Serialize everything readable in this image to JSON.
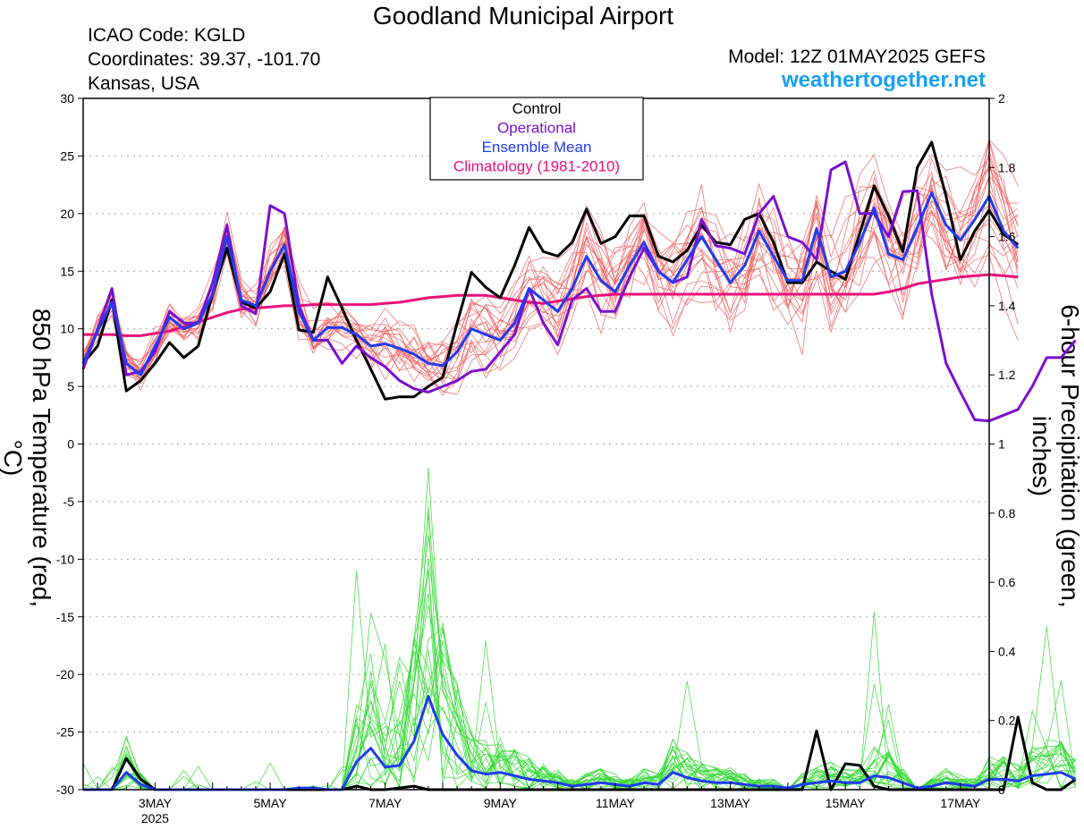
{
  "header": {
    "title": "Goodland Municipal Airport",
    "icao": "ICAO Code: KGLD",
    "coords": "Coordinates: 39.37, -101.70",
    "location": "Kansas, USA",
    "model": "Model: 12Z 01MAY2025 GEFS",
    "site": "weathertogether.net"
  },
  "colors": {
    "control": "#000000",
    "operational": "#7a10d0",
    "ensemble_mean": "#1f3cf0",
    "climatology": "#e8107a",
    "members_temp": "#f06060",
    "members_precip": "#30d830",
    "site": "#19a0f0"
  },
  "chart_data": {
    "type": "line",
    "ylabel_left": "850 hPa Temperature (red, °C)",
    "ylabel_right": "6-hour Precipitation (green, inches)",
    "ylim_left": [
      -30,
      30
    ],
    "ylim_right": [
      0,
      2
    ],
    "yticks_left": [
      "30",
      "25",
      "20",
      "15",
      "10",
      "5",
      "0",
      "-5",
      "-10",
      "-15",
      "-20",
      "-25",
      "-30"
    ],
    "yticks_right": [
      "2",
      "1.8",
      "1.6",
      "1.4",
      "1.2",
      "1",
      "0.8",
      "0.6",
      "0.4",
      "0.2",
      "0"
    ],
    "xticks": [
      {
        "label": "3MAY",
        "sub": "2025",
        "day": 3
      },
      {
        "label": "5MAY",
        "day": 5
      },
      {
        "label": "7MAY",
        "day": 7
      },
      {
        "label": "9MAY",
        "day": 9
      },
      {
        "label": "11MAY",
        "day": 11
      },
      {
        "label": "13MAY",
        "day": 13
      },
      {
        "label": "15MAY",
        "day": 15
      },
      {
        "label": "17MAY",
        "day": 17
      }
    ],
    "x_range_days": [
      1.75,
      17.5
    ],
    "grid": "dotted horizontal",
    "legend": {
      "position": "top-center",
      "entries": [
        {
          "name": "Control",
          "color": "#000000"
        },
        {
          "name": "Operational",
          "color": "#7a10d0"
        },
        {
          "name": "Ensemble Mean",
          "color": "#1f3cf0"
        },
        {
          "name": "Climatology (1981-2010)",
          "color": "#e8107a"
        }
      ]
    },
    "series": [
      {
        "name": "Control",
        "axis": "left",
        "step_days": 0.25,
        "start_day": 1.75,
        "values": [
          7,
          8.5,
          12.5,
          4.6,
          5.5,
          7,
          8.8,
          7.5,
          8.5,
          13,
          17,
          12.3,
          11.8,
          13.2,
          16.5,
          9.9,
          9.7,
          14.5,
          11.8,
          9,
          6.5,
          3.9,
          4.1,
          4.1,
          5,
          5.8,
          10.5,
          14.9,
          13.6,
          12.7,
          15.5,
          18.8,
          16.7,
          16.3,
          17.5,
          20.4,
          17.4,
          18,
          19.8,
          19.8,
          16.3,
          15.8,
          16.8,
          19,
          17.5,
          17.3,
          19.5,
          20,
          17.5,
          14,
          14,
          15.8,
          15,
          14.3,
          18.3,
          22.4,
          19.8,
          16.7,
          24,
          26.2,
          21.5,
          16,
          18.5,
          20.3,
          18.2,
          17.3
        ]
      },
      {
        "name": "Operational",
        "axis": "left",
        "step_days": 0.25,
        "start_day": 1.75,
        "values": [
          6.5,
          10,
          13.5,
          6,
          6.3,
          8,
          11.5,
          10.5,
          10.5,
          14,
          19,
          12,
          11.3,
          20.7,
          20,
          12,
          9,
          9,
          7,
          8.5,
          7.5,
          6.7,
          5.5,
          4.8,
          4.5,
          5,
          5.5,
          6.3,
          6.5,
          8,
          9.5,
          13.5,
          10.5,
          8.6,
          12.5,
          13.5,
          11.5,
          11.5,
          14.5,
          17,
          15,
          14,
          14.5,
          19.5,
          17.2,
          17,
          16.5,
          20,
          21.5,
          18,
          17.5,
          16,
          23.8,
          24.5,
          20,
          20,
          18,
          21.9,
          22,
          13,
          7,
          4.5,
          2.1,
          2,
          2.5,
          3,
          5,
          7.5,
          7.5,
          9
        ]
      },
      {
        "name": "Ensemble Mean",
        "axis": "left",
        "step_days": 0.25,
        "start_day": 1.75,
        "values": [
          7,
          9.8,
          12.3,
          7,
          6,
          8.5,
          11,
          10,
          10.5,
          13,
          18,
          12.5,
          12,
          15,
          17.3,
          11.5,
          9,
          10.1,
          10.1,
          9.5,
          8.5,
          8.7,
          8.3,
          7.8,
          7,
          6.8,
          8,
          10,
          9.5,
          9,
          10.5,
          13.5,
          12.5,
          11.5,
          13.5,
          16.3,
          14.2,
          13.2,
          15.5,
          17.5,
          15,
          14,
          16,
          18,
          16,
          14,
          15.5,
          18.5,
          16.3,
          14.2,
          14.2,
          18.7,
          14.5,
          15,
          17.5,
          20.5,
          16.5,
          16,
          18.8,
          21.8,
          19,
          17.7,
          19.5,
          21.5,
          18.5,
          17
        ]
      },
      {
        "name": "Climatology (1981-2010)",
        "axis": "left",
        "step_days": 0.25,
        "start_day": 1.75,
        "values": [
          9.5,
          9.5,
          9.5,
          9.4,
          9.4,
          9.6,
          9.8,
          10.2,
          10.6,
          11.0,
          11.4,
          11.7,
          11.8,
          11.9,
          12.0,
          12.0,
          12.1,
          12.1,
          12.1,
          12.1,
          12.1,
          12.2,
          12.3,
          12.5,
          12.7,
          12.8,
          12.9,
          12.9,
          12.9,
          12.7,
          12.5,
          12.3,
          12.2,
          12.4,
          12.6,
          12.8,
          12.9,
          13.0,
          13.0,
          13.0,
          13.0,
          13.0,
          13.0,
          13.0,
          13.0,
          13.0,
          13.0,
          13.0,
          13.0,
          13.0,
          13.0,
          13.0,
          13.0,
          13.0,
          13.0,
          13.0,
          13.2,
          13.5,
          13.9,
          14.1,
          14.3,
          14.5,
          14.6,
          14.7,
          14.6,
          14.5
        ]
      },
      {
        "name": "Control precipitation",
        "axis": "right",
        "step_days": 0.25,
        "start_day": 1.75,
        "values": [
          0,
          0,
          0,
          0.09,
          0.03,
          0,
          0,
          0,
          0,
          0,
          0,
          0,
          0,
          0,
          0,
          0,
          0,
          0,
          0,
          0.01,
          0,
          0,
          0.005,
          0.01,
          0,
          0,
          0,
          0,
          0,
          0,
          0,
          0,
          0,
          0,
          0,
          0,
          0,
          0,
          0,
          0,
          0,
          0,
          0,
          0,
          0,
          0,
          0,
          0,
          0,
          0,
          0,
          0.17,
          0,
          0.075,
          0.07,
          0.01,
          0,
          0,
          0,
          0,
          0,
          0,
          0,
          0,
          0,
          0.21,
          0.02,
          0,
          0,
          0.03
        ]
      },
      {
        "name": "Ensemble Mean precipitation",
        "axis": "right",
        "step_days": 0.25,
        "start_day": 1.75,
        "values": [
          0,
          0,
          0,
          0.05,
          0.015,
          0,
          0,
          0,
          0,
          0,
          0,
          0,
          0,
          0,
          0,
          0.005,
          0.005,
          0,
          0,
          0.08,
          0.12,
          0.065,
          0.07,
          0.14,
          0.27,
          0.16,
          0.1,
          0.055,
          0.045,
          0.05,
          0.04,
          0.03,
          0.025,
          0.02,
          0.01,
          0.015,
          0.02,
          0.015,
          0.01,
          0.02,
          0.015,
          0.05,
          0.035,
          0.025,
          0.02,
          0.02,
          0.015,
          0.01,
          0.01,
          0.005,
          0.015,
          0.02,
          0.025,
          0.02,
          0.02,
          0.04,
          0.035,
          0.02,
          0.005,
          0.01,
          0.02,
          0.015,
          0.01,
          0.03,
          0.03,
          0.025,
          0.04,
          0.045,
          0.05,
          0.03
        ]
      }
    ]
  }
}
